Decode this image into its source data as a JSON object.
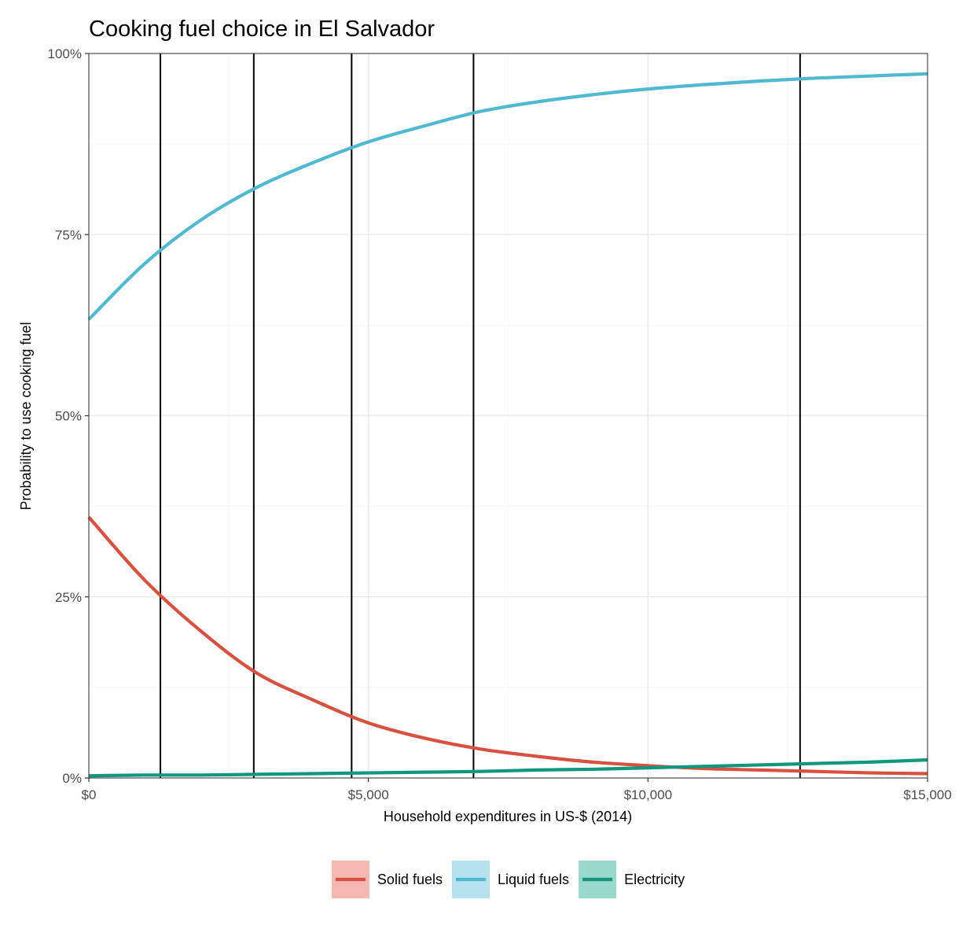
{
  "chart_data": {
    "type": "line",
    "title": "Cooking fuel choice in El Salvador",
    "xlabel": "Household expenditures in US-$ (2014)",
    "ylabel": "Probability to use cooking fuel",
    "xlim": [
      0,
      15000
    ],
    "ylim": [
      0,
      1
    ],
    "x_ticks": [
      0,
      5000,
      10000,
      15000
    ],
    "x_tick_labels": [
      "$0",
      "$5,000",
      "$10,000",
      "$15,000"
    ],
    "y_ticks": [
      0,
      0.25,
      0.5,
      0.75,
      1.0
    ],
    "y_tick_labels": [
      "0%",
      "25%",
      "50%",
      "75%",
      "100%"
    ],
    "grid": true,
    "legend_position": "bottom",
    "vertical_lines": [
      1280,
      2950,
      4700,
      6880,
      12720
    ],
    "x": [
      0,
      1000,
      2000,
      3000,
      4000,
      5000,
      6000,
      7000,
      8000,
      9000,
      10000,
      11000,
      12000,
      13000,
      14000,
      15000
    ],
    "series": [
      {
        "name": "Solid fuels",
        "color": "#d9503f",
        "legend_fill": "#f4b8b0",
        "values": [
          0.36,
          0.273,
          0.203,
          0.145,
          0.108,
          0.076,
          0.055,
          0.04,
          0.03,
          0.022,
          0.017,
          0.013,
          0.011,
          0.009,
          0.007,
          0.006
        ]
      },
      {
        "name": "Liquid fuels",
        "color": "#4fb9d2",
        "legend_fill": "#b5e2ee",
        "values": [
          0.633,
          0.71,
          0.77,
          0.815,
          0.849,
          0.878,
          0.9,
          0.92,
          0.933,
          0.943,
          0.951,
          0.957,
          0.962,
          0.966,
          0.969,
          0.972
        ]
      },
      {
        "name": "Electricity",
        "color": "#11977e",
        "legend_fill": "#99d9cb",
        "values": [
          0.003,
          0.004,
          0.004,
          0.005,
          0.006,
          0.007,
          0.008,
          0.009,
          0.011,
          0.012,
          0.014,
          0.016,
          0.018,
          0.02,
          0.022,
          0.025
        ]
      }
    ]
  }
}
